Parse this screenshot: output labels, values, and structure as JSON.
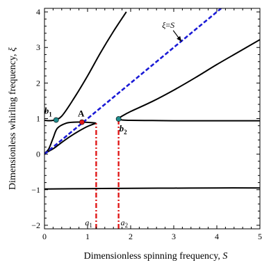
{
  "chart_data": {
    "type": "line",
    "title": "",
    "xlabel": "Dimensionless spinning frequency, ",
    "xlabel_symbol": "S",
    "ylabel": "Dimensionless whirling frequency, ",
    "ylabel_symbol": "ξ",
    "xlim": [
      0,
      5
    ],
    "ylim": [
      -2.1,
      4.1
    ],
    "xticks": [
      0,
      1,
      2,
      3,
      4,
      5
    ],
    "yticks": [
      -2,
      -1,
      0,
      1,
      2,
      3,
      4
    ],
    "grid": false,
    "series": [
      {
        "style": "solid",
        "color": "#000000",
        "x": [
          0.0,
          0.2,
          0.4,
          0.7,
          1.0,
          1.3,
          1.6,
          1.9
        ],
        "y": [
          0.95,
          0.95,
          1.07,
          1.6,
          2.2,
          2.85,
          3.45,
          4.0
        ]
      },
      {
        "style": "solid",
        "color": "#000000",
        "x": [
          0.0,
          0.1,
          0.2,
          0.3,
          0.5,
          0.7,
          0.9,
          1.05,
          1.15,
          1.2
        ],
        "y": [
          0.02,
          0.15,
          0.45,
          0.73,
          0.87,
          0.9,
          0.9,
          0.89,
          0.88,
          0.87
        ]
      },
      {
        "style": "solid",
        "color": "#000000",
        "x": [
          0.0,
          0.2,
          0.4,
          0.6,
          0.8,
          1.0,
          1.2
        ],
        "y": [
          0.02,
          0.15,
          0.33,
          0.5,
          0.65,
          0.78,
          0.87
        ]
      },
      {
        "style": "solid",
        "color": "#000000",
        "x": [
          1.72,
          1.8,
          2.0,
          2.5,
          3.0,
          3.5,
          4.0,
          4.5,
          5.0
        ],
        "y": [
          1.0,
          1.07,
          1.2,
          1.48,
          1.8,
          2.15,
          2.52,
          2.87,
          3.22
        ]
      },
      {
        "style": "solid",
        "color": "#000000",
        "x": [
          1.72,
          1.8,
          2.0,
          2.5,
          3.0,
          4.0,
          5.0
        ],
        "y": [
          1.0,
          0.96,
          0.95,
          0.945,
          0.94,
          0.94,
          0.94
        ]
      },
      {
        "style": "solid",
        "color": "#000000",
        "x": [
          0.0,
          1.0,
          2.0,
          3.0,
          4.0,
          5.0
        ],
        "y": [
          -0.98,
          -0.97,
          -0.96,
          -0.955,
          -0.95,
          -0.95
        ]
      },
      {
        "name": "ξ=S",
        "style": "dashed",
        "color": "#1a1ad6",
        "x": [
          0.0,
          4.1
        ],
        "y": [
          0.0,
          4.1
        ]
      },
      {
        "style": "dashdot",
        "color": "#e01818",
        "x": [
          1.2,
          1.2
        ],
        "y": [
          -2.1,
          0.87
        ]
      },
      {
        "style": "dashdot",
        "color": "#e01818",
        "x": [
          1.72,
          1.72
        ],
        "y": [
          -2.1,
          1.0
        ]
      }
    ],
    "points": [
      {
        "label": "b1",
        "base": "b",
        "sub": "1",
        "x": 0.27,
        "y": 0.96,
        "color": "#1e8c8c"
      },
      {
        "label": "A",
        "base": "A",
        "sub": "",
        "x": 0.87,
        "y": 0.9,
        "color": "#e01818"
      },
      {
        "label": "b2",
        "base": "b",
        "sub": "2",
        "x": 1.72,
        "y": 0.99,
        "color": "#1e8c8c"
      }
    ],
    "annotations": [
      {
        "text": "ξ=S",
        "base": "ξ=",
        "italic_tail": "S",
        "x": 3.1,
        "y": 3.4
      },
      {
        "text": "a1",
        "base": "a",
        "sub": "1",
        "x": 1.2,
        "y": -2.0
      },
      {
        "text": "a2",
        "base": "a",
        "sub": "2",
        "x": 1.72,
        "y": -2.0
      }
    ]
  }
}
